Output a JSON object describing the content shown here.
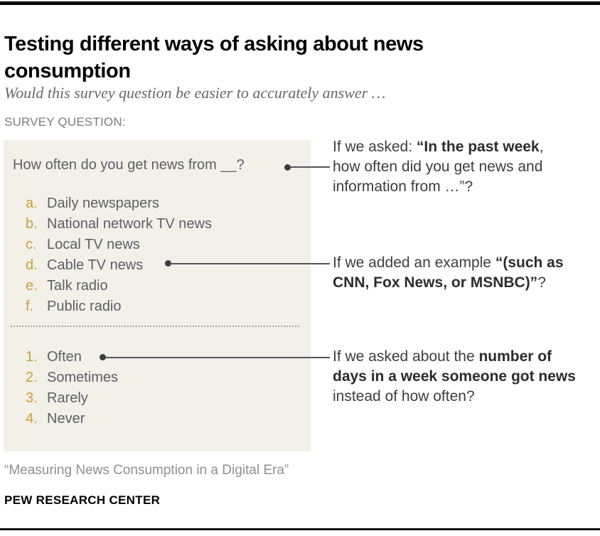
{
  "header": {
    "title": "Testing different ways of asking about news consumption",
    "subtitle": "Would this survey question be easier to accurately answer …",
    "section_label": "SURVEY QUESTION:"
  },
  "survey_box": {
    "question": "How often do you get news from __?",
    "lettered_options": [
      {
        "marker": "a.",
        "label": "Daily newspapers"
      },
      {
        "marker": "b.",
        "label": "National network TV news"
      },
      {
        "marker": "c.",
        "label": "Local TV news"
      },
      {
        "marker": "d.",
        "label": "Cable TV news"
      },
      {
        "marker": "e.",
        "label": "Talk radio"
      },
      {
        "marker": "f.",
        "label": "Public radio"
      }
    ],
    "numbered_options": [
      {
        "marker": "1.",
        "label": "Often"
      },
      {
        "marker": "2.",
        "label": "Sometimes"
      },
      {
        "marker": "3.",
        "label": "Rarely"
      },
      {
        "marker": "4.",
        "label": "Never"
      }
    ]
  },
  "annotations": [
    {
      "lines": [
        [
          {
            "text": "If we asked: ",
            "bold": false
          },
          {
            "text": "“In the past week",
            "bold": true
          },
          {
            "text": ",",
            "bold": false
          }
        ],
        [
          {
            "text": "how often did you get news and",
            "bold": false
          }
        ],
        [
          {
            "text": "information from …”?",
            "bold": false
          }
        ]
      ]
    },
    {
      "lines": [
        [
          {
            "text": "If we added an example ",
            "bold": false
          },
          {
            "text": "“(such as",
            "bold": true
          }
        ],
        [
          {
            "text": "CNN, Fox News, or MSNBC)”",
            "bold": true
          },
          {
            "text": "?",
            "bold": false
          }
        ]
      ]
    },
    {
      "lines": [
        [
          {
            "text": "If we asked about the ",
            "bold": false
          },
          {
            "text": "number of",
            "bold": true
          }
        ],
        [
          {
            "text": "days in a week someone got news",
            "bold": true
          }
        ],
        [
          {
            "text": "instead of how often?",
            "bold": false
          }
        ]
      ]
    }
  ],
  "footer": {
    "source": "“Measuring News Consumption in a Digital Era”",
    "brand": "PEW RESEARCH CENTER"
  },
  "colors": {
    "accent_gold": "#c9a23a",
    "box_bg": "#f2f0e9",
    "list_text_gray": "#5f5f62",
    "annotation_text": "#3d3d40",
    "rule_black": "#000000"
  }
}
